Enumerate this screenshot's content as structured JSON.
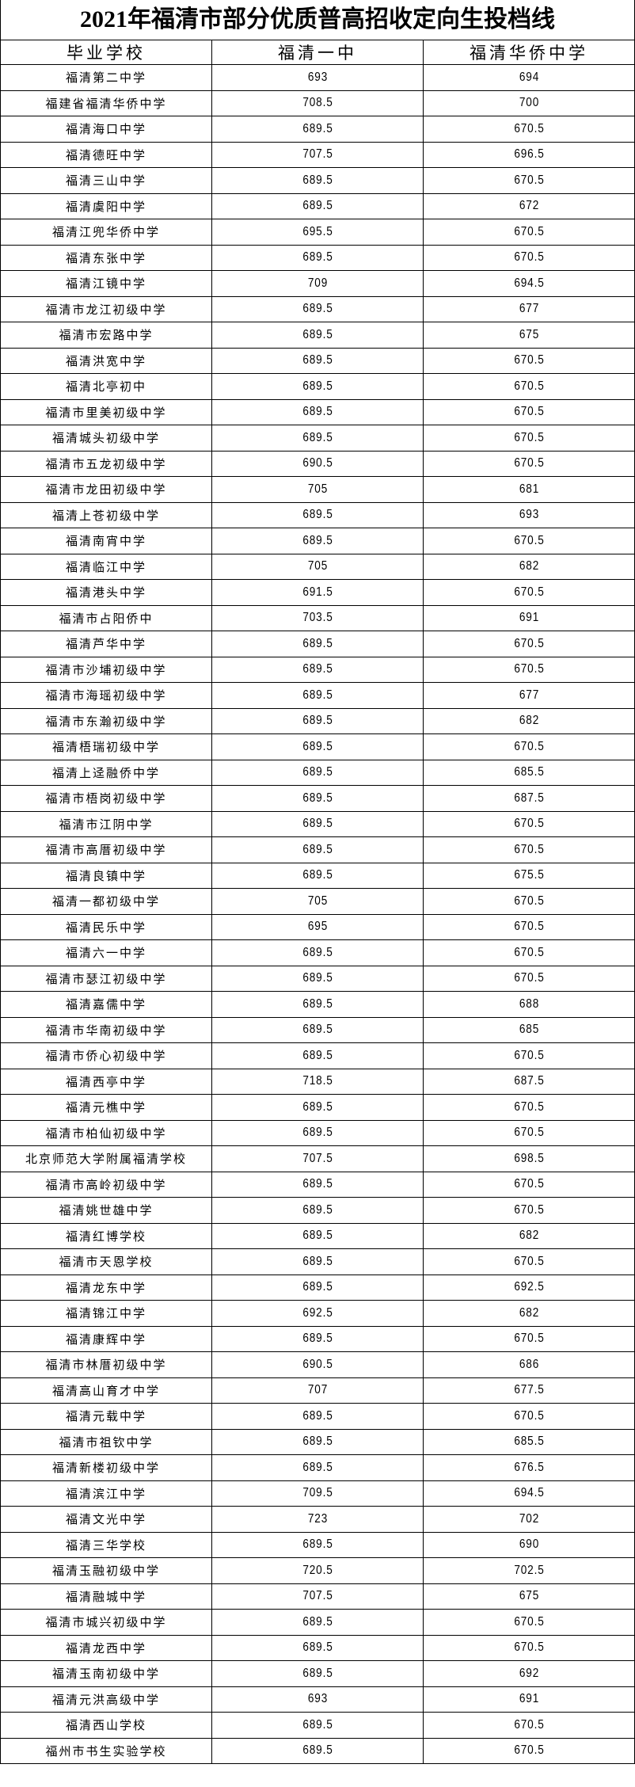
{
  "title": "2021年福清市部分优质普高招收定向生投档线",
  "headers": [
    "毕业学校",
    "福清一中",
    "福清华侨中学"
  ],
  "rows": [
    [
      "福清第二中学",
      "693",
      "694"
    ],
    [
      "福建省福清华侨中学",
      "708.5",
      "700"
    ],
    [
      "福清海口中学",
      "689.5",
      "670.5"
    ],
    [
      "福清德旺中学",
      "707.5",
      "696.5"
    ],
    [
      "福清三山中学",
      "689.5",
      "670.5"
    ],
    [
      "福清虞阳中学",
      "689.5",
      "672"
    ],
    [
      "福清江兜华侨中学",
      "695.5",
      "670.5"
    ],
    [
      "福清东张中学",
      "689.5",
      "670.5"
    ],
    [
      "福清江镜中学",
      "709",
      "694.5"
    ],
    [
      "福清市龙江初级中学",
      "689.5",
      "677"
    ],
    [
      "福清市宏路中学",
      "689.5",
      "675"
    ],
    [
      "福清洪宽中学",
      "689.5",
      "670.5"
    ],
    [
      "福清北亭初中",
      "689.5",
      "670.5"
    ],
    [
      "福清市里美初级中学",
      "689.5",
      "670.5"
    ],
    [
      "福清城头初级中学",
      "689.5",
      "670.5"
    ],
    [
      "福清市五龙初级中学",
      "690.5",
      "670.5"
    ],
    [
      "福清市龙田初级中学",
      "705",
      "681"
    ],
    [
      "福清上苍初级中学",
      "689.5",
      "693"
    ],
    [
      "福清南宵中学",
      "689.5",
      "670.5"
    ],
    [
      "福清临江中学",
      "705",
      "682"
    ],
    [
      "福清港头中学",
      "691.5",
      "670.5"
    ],
    [
      "福清市占阳侨中",
      "703.5",
      "691"
    ],
    [
      "福清芦华中学",
      "689.5",
      "670.5"
    ],
    [
      "福清市沙埔初级中学",
      "689.5",
      "670.5"
    ],
    [
      "福清市海瑶初级中学",
      "689.5",
      "677"
    ],
    [
      "福清市东瀚初级中学",
      "689.5",
      "682"
    ],
    [
      "福清梧瑞初级中学",
      "689.5",
      "670.5"
    ],
    [
      "福清上迳融侨中学",
      "689.5",
      "685.5"
    ],
    [
      "福清市梧岗初级中学",
      "689.5",
      "687.5"
    ],
    [
      "福清市江阴中学",
      "689.5",
      "670.5"
    ],
    [
      "福清市高厝初级中学",
      "689.5",
      "670.5"
    ],
    [
      "福清良镇中学",
      "689.5",
      "675.5"
    ],
    [
      "福清一都初级中学",
      "705",
      "670.5"
    ],
    [
      "福清民乐中学",
      "695",
      "670.5"
    ],
    [
      "福清六一中学",
      "689.5",
      "670.5"
    ],
    [
      "福清市瑟江初级中学",
      "689.5",
      "670.5"
    ],
    [
      "福清嘉儒中学",
      "689.5",
      "688"
    ],
    [
      "福清市华南初级中学",
      "689.5",
      "685"
    ],
    [
      "福清市侨心初级中学",
      "689.5",
      "670.5"
    ],
    [
      "福清西亭中学",
      "718.5",
      "687.5"
    ],
    [
      "福清元樵中学",
      "689.5",
      "670.5"
    ],
    [
      "福清市柏仙初级中学",
      "689.5",
      "670.5"
    ],
    [
      "北京师范大学附属福清学校",
      "707.5",
      "698.5"
    ],
    [
      "福清市高岭初级中学",
      "689.5",
      "670.5"
    ],
    [
      "福清姚世雄中学",
      "689.5",
      "670.5"
    ],
    [
      "福清红博学校",
      "689.5",
      "682"
    ],
    [
      "福清市天恩学校",
      "689.5",
      "670.5"
    ],
    [
      "福清龙东中学",
      "689.5",
      "692.5"
    ],
    [
      "福清锦江中学",
      "692.5",
      "682"
    ],
    [
      "福清康辉中学",
      "689.5",
      "670.5"
    ],
    [
      "福清市林厝初级中学",
      "690.5",
      "686"
    ],
    [
      "福清高山育才中学",
      "707",
      "677.5"
    ],
    [
      "福清元载中学",
      "689.5",
      "670.5"
    ],
    [
      "福清市祖钦中学",
      "689.5",
      "685.5"
    ],
    [
      "福清新楼初级中学",
      "689.5",
      "676.5"
    ],
    [
      "福清滨江中学",
      "709.5",
      "694.5"
    ],
    [
      "福清文光中学",
      "723",
      "702"
    ],
    [
      "福清三华学校",
      "689.5",
      "690"
    ],
    [
      "福清玉融初级中学",
      "720.5",
      "702.5"
    ],
    [
      "福清融城中学",
      "707.5",
      "675"
    ],
    [
      "福清市城兴初级中学",
      "689.5",
      "670.5"
    ],
    [
      "福清龙西中学",
      "689.5",
      "670.5"
    ],
    [
      "福清玉南初级中学",
      "689.5",
      "692"
    ],
    [
      "福清元洪高级中学",
      "693",
      "691"
    ],
    [
      "福清西山学校",
      "689.5",
      "670.5"
    ],
    [
      "福州市书生实验学校",
      "689.5",
      "670.5"
    ]
  ]
}
